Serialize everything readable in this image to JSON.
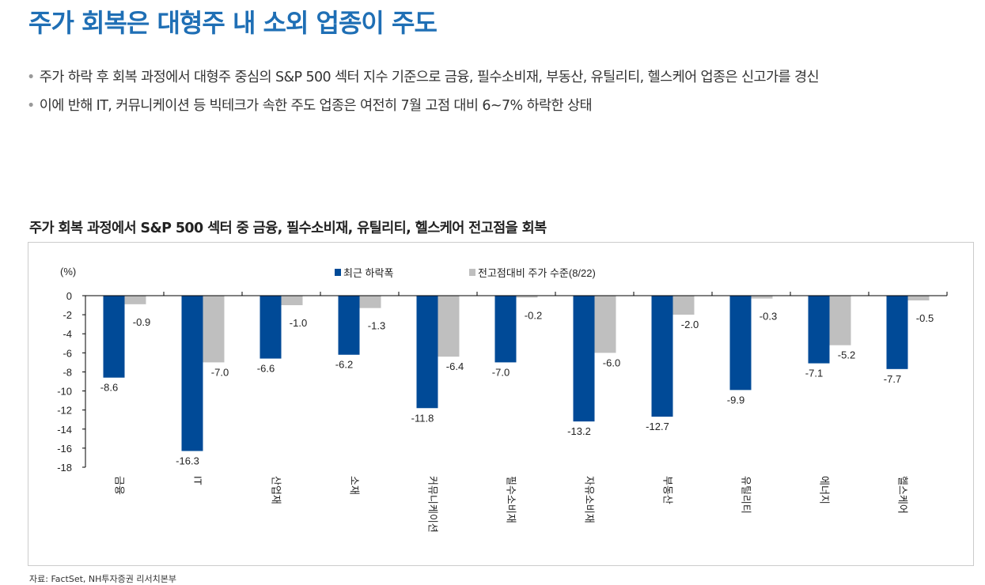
{
  "header": {
    "title": "주가 회복은 대형주 내 소외 업종이 주도",
    "bullets": [
      "주가 하락 후 회복 과정에서 대형주 중심의 S&P 500 섹터 지수 기준으로 금융, 필수소비재, 부동산, 유틸리티, 헬스케어 업종은 신고가를 경신",
      "이에 반해 IT, 커뮤니케이션 등 빅테크가 속한 주도 업종은 여전히 7월 고점 대비 6~7% 하락한 상태"
    ]
  },
  "chart_data": {
    "type": "bar",
    "title": "주가 회복 과정에서 S&P 500 섹터 중 금융, 필수소비재, 유틸리티, 헬스케어 전고점을 회복",
    "ylabel": "(%)",
    "ylim": [
      -18,
      0
    ],
    "yticks": [
      0,
      -2,
      -4,
      -6,
      -8,
      -10,
      -12,
      -14,
      -16,
      -18
    ],
    "legend_position": "top-center",
    "categories": [
      "금융",
      "IT",
      "산업재",
      "소재",
      "커뮤니케이션",
      "필수소비재",
      "자유소비재",
      "부동산",
      "유틸리티",
      "에너지",
      "헬스케어"
    ],
    "series": [
      {
        "name": "최근 하락폭",
        "color": "#004a97",
        "values": [
          -8.6,
          -16.3,
          -6.6,
          -6.2,
          -11.8,
          -7.0,
          -13.2,
          -12.7,
          -9.9,
          -7.1,
          -7.7
        ]
      },
      {
        "name": "전고점대비 주가 수준(8/22)",
        "color": "#bfbfbf",
        "values": [
          -0.9,
          -7.0,
          -1.0,
          -1.3,
          -6.4,
          -0.2,
          -6.0,
          -2.0,
          -0.3,
          -5.2,
          -0.5
        ]
      }
    ]
  },
  "source": "자료: FactSet, NH투자증권 리서치본부"
}
